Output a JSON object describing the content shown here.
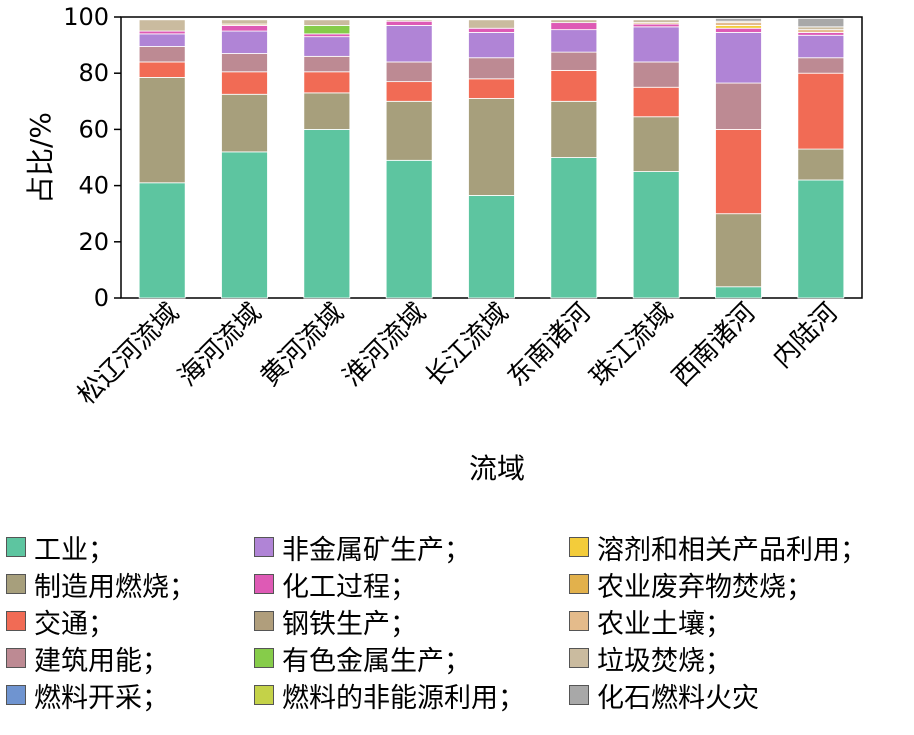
{
  "chart_data": {
    "type": "bar",
    "stacked": true,
    "xlabel": "流域",
    "ylabel": "占比/%",
    "ylim": [
      0,
      100
    ],
    "yticks": [
      "0",
      "20",
      "40",
      "60",
      "80",
      "100"
    ],
    "grid": false,
    "legend_position": "bottom",
    "categories": [
      "松辽河流域",
      "海河流域",
      "黄河流域",
      "淮河流域",
      "长江流域",
      "东南诸河",
      "珠江流域",
      "西南诸河",
      "内陆河"
    ],
    "series": [
      {
        "name": "工业；",
        "color": "#5dc5a0",
        "values": [
          41,
          52,
          60,
          49,
          36.5,
          50,
          45,
          4,
          42
        ]
      },
      {
        "name": "制造用燃烧；",
        "color": "#a79f7c",
        "values": [
          37.5,
          20.5,
          13,
          21,
          34.5,
          20,
          19.5,
          26,
          11
        ]
      },
      {
        "name": "交通；",
        "color": "#f16b55",
        "values": [
          5.5,
          8,
          7.5,
          7,
          7,
          11,
          10.5,
          30,
          27
        ]
      },
      {
        "name": "建筑用能；",
        "color": "#bd8a93",
        "values": [
          5.5,
          6.5,
          5.5,
          7,
          7.5,
          6.5,
          9,
          16.5,
          5.5
        ]
      },
      {
        "name": "燃料开采；",
        "color": "#6f94d0",
        "values": [
          0,
          0,
          0,
          0,
          0,
          0,
          0,
          0,
          0
        ]
      },
      {
        "name": "非金属矿生产；",
        "color": "#b084d6",
        "values": [
          4.5,
          8,
          7,
          13,
          9,
          8,
          12.5,
          18,
          8
        ]
      },
      {
        "name": "化工过程；",
        "color": "#de5ab5",
        "values": [
          1,
          2,
          1,
          1.5,
          1.5,
          2.5,
          1,
          1.5,
          1
        ]
      },
      {
        "name": "钢铁生产；",
        "color": "#b09e7c",
        "values": [
          0,
          0,
          0,
          0,
          0,
          0,
          0,
          0,
          0
        ]
      },
      {
        "name": "有色金属生产；",
        "color": "#86cc4a",
        "values": [
          0,
          0,
          3,
          0,
          0,
          0,
          0,
          0,
          0
        ]
      },
      {
        "name": "燃料的非能源利用；",
        "color": "#c4d248",
        "values": [
          0,
          0,
          0,
          0,
          0,
          0,
          0,
          0,
          0
        ]
      },
      {
        "name": "溶剂和相关产品利用；",
        "color": "#f3cc3a",
        "values": [
          0,
          0,
          0,
          0,
          0,
          0,
          0,
          1,
          0
        ]
      },
      {
        "name": "农业废弃物焚烧；",
        "color": "#e2b14c",
        "values": [
          0,
          0,
          0,
          0,
          0,
          0,
          0,
          0,
          0
        ]
      },
      {
        "name": "农业土壤；",
        "color": "#e4bb8b",
        "values": [
          0,
          0.5,
          0,
          0,
          0,
          0,
          0.5,
          1,
          1
        ]
      },
      {
        "name": "垃圾焚烧；",
        "color": "#cabb9f",
        "values": [
          4,
          1.5,
          2,
          0.5,
          3,
          1,
          1,
          0.5,
          1
        ]
      },
      {
        "name": "化石燃料火灾",
        "color": "#a8a8a8",
        "values": [
          0,
          0,
          0,
          0,
          0,
          0,
          0,
          1,
          3
        ]
      }
    ]
  }
}
